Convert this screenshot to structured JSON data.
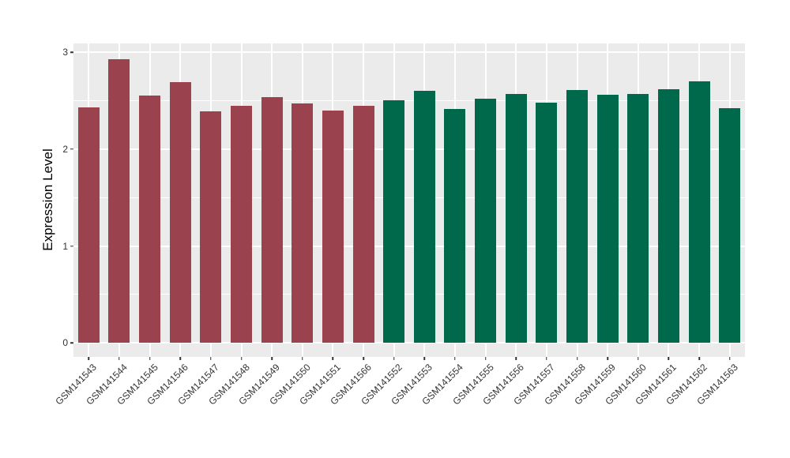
{
  "chart_data": {
    "type": "bar",
    "title": "",
    "xlabel": "",
    "ylabel": "Expression Level",
    "categories": [
      "GSM141543",
      "GSM141544",
      "GSM141545",
      "GSM141546",
      "GSM141547",
      "GSM141548",
      "GSM141549",
      "GSM141550",
      "GSM141551",
      "GSM141566",
      "GSM141552",
      "GSM141553",
      "GSM141554",
      "GSM141555",
      "GSM141556",
      "GSM141557",
      "GSM141558",
      "GSM141559",
      "GSM141560",
      "GSM141561",
      "GSM141562",
      "GSM141563"
    ],
    "values": [
      2.43,
      2.93,
      2.55,
      2.69,
      2.39,
      2.45,
      2.54,
      2.47,
      2.4,
      2.45,
      2.5,
      2.6,
      2.41,
      2.52,
      2.57,
      2.48,
      2.61,
      2.56,
      2.57,
      2.62,
      2.7,
      2.42
    ],
    "groups": [
      "A",
      "A",
      "A",
      "A",
      "A",
      "A",
      "A",
      "A",
      "A",
      "A",
      "B",
      "B",
      "B",
      "B",
      "B",
      "B",
      "B",
      "B",
      "B",
      "B",
      "B",
      "B"
    ],
    "group_colors": {
      "A": "#9B424F",
      "B": "#00694C"
    },
    "yticks": [
      0,
      1,
      2,
      3
    ],
    "ytick_labels": [
      "0",
      "1",
      "2",
      "3"
    ],
    "ylim": [
      -0.15,
      3.09
    ],
    "grid": true,
    "legend_position": "none",
    "style": {
      "panel_background": "#EBEBEB",
      "grid_color": "#FFFFFF",
      "axis_text_color": "#333333",
      "axis_title_color": "#000000",
      "tick_color": "#333333",
      "figure_background": "#FFFFFF"
    }
  }
}
